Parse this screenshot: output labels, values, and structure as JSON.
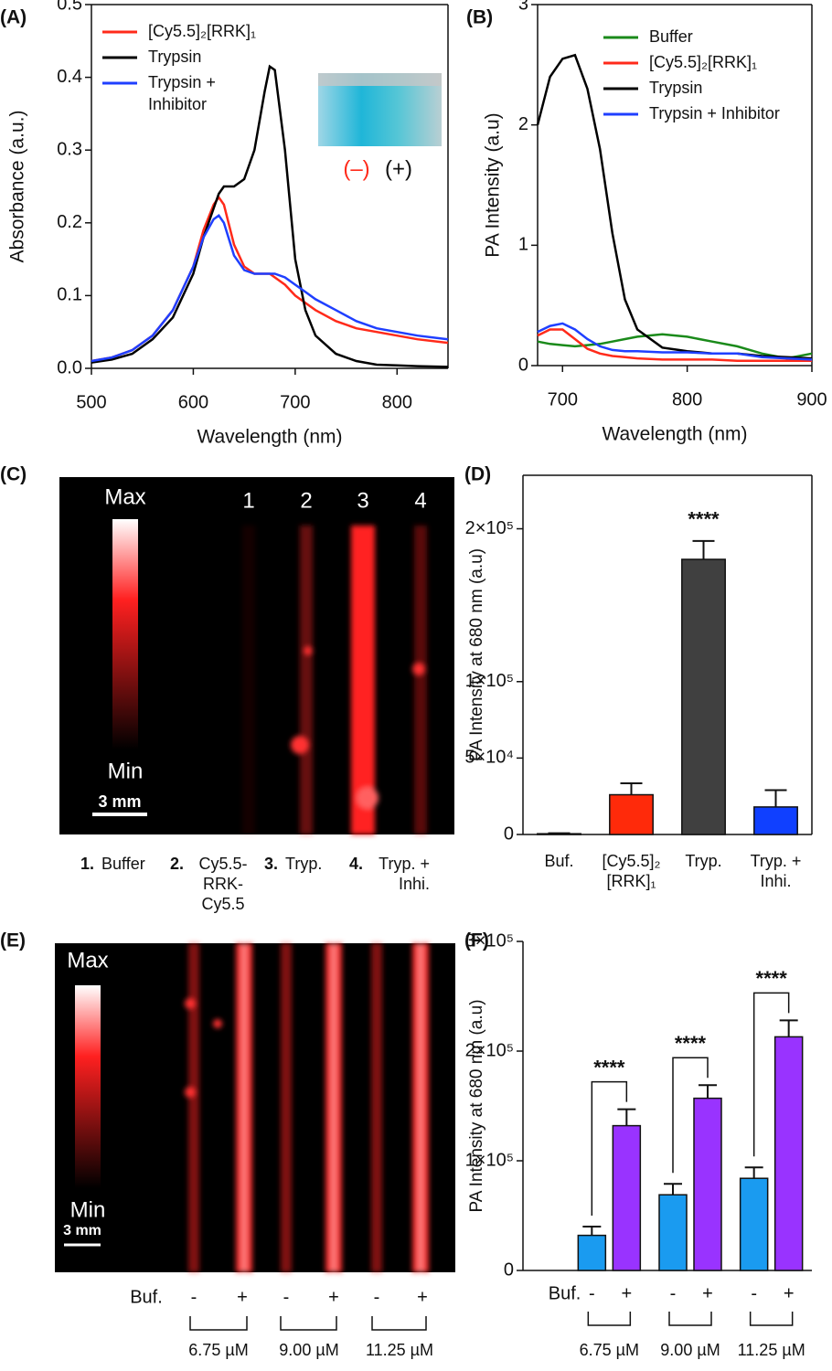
{
  "chart_data": [
    {
      "type": "line",
      "panel_label": "(A)",
      "xlabel": "Wavelength (nm)",
      "ylabel": "Absorbance (a.u.)",
      "x": [
        500,
        520,
        540,
        560,
        580,
        600,
        610,
        620,
        625,
        630,
        640,
        650,
        660,
        670,
        675,
        680,
        690,
        700,
        710,
        720,
        740,
        760,
        780,
        800,
        820,
        850
      ],
      "series": [
        {
          "name": "[Cy5.5]₂[RRK]₁",
          "color": "#ff2a1a",
          "values": [
            0.01,
            0.015,
            0.025,
            0.045,
            0.08,
            0.14,
            0.19,
            0.225,
            0.235,
            0.225,
            0.17,
            0.14,
            0.13,
            0.13,
            0.13,
            0.125,
            0.115,
            0.1,
            0.09,
            0.08,
            0.065,
            0.055,
            0.05,
            0.045,
            0.04,
            0.035
          ]
        },
        {
          "name": "Trypsin",
          "color": "#000000",
          "values": [
            0.008,
            0.012,
            0.02,
            0.04,
            0.07,
            0.13,
            0.18,
            0.22,
            0.24,
            0.25,
            0.25,
            0.26,
            0.3,
            0.38,
            0.415,
            0.41,
            0.3,
            0.15,
            0.08,
            0.045,
            0.02,
            0.01,
            0.005,
            0.004,
            0.003,
            0.002
          ]
        },
        {
          "name": "Trypsin +\nInhibitor",
          "color": "#1f3fff",
          "values": [
            0.01,
            0.015,
            0.025,
            0.045,
            0.08,
            0.14,
            0.18,
            0.205,
            0.21,
            0.2,
            0.155,
            0.135,
            0.13,
            0.13,
            0.13,
            0.13,
            0.125,
            0.115,
            0.105,
            0.095,
            0.08,
            0.065,
            0.055,
            0.05,
            0.045,
            0.04
          ]
        }
      ],
      "xlim": [
        500,
        850
      ],
      "xticks": [
        500,
        600,
        700,
        800
      ],
      "ylim": [
        0,
        0.5
      ],
      "yticks": [
        {
          "value": 0,
          "label": "0.0"
        },
        0.1,
        0.2,
        0.3,
        0.4,
        0.5
      ],
      "legend": "upper left",
      "box": true,
      "inset_labels": [
        "(–)",
        "(+)"
      ]
    },
    {
      "type": "line",
      "panel_label": "(B)",
      "xlabel": "Wavelength (nm)",
      "ylabel": "PA Intensity (a.u)",
      "x": [
        680,
        690,
        700,
        710,
        720,
        730,
        740,
        750,
        760,
        780,
        800,
        820,
        840,
        860,
        880,
        900
      ],
      "series": [
        {
          "name": "Buffer",
          "color": "#1a8a1a",
          "values": [
            0.2,
            0.18,
            0.17,
            0.16,
            0.17,
            0.18,
            0.2,
            0.22,
            0.24,
            0.26,
            0.24,
            0.2,
            0.16,
            0.1,
            0.06,
            0.1
          ]
        },
        {
          "name": "[Cy5.5]₂[RRK]₁",
          "color": "#ff2a1a",
          "values": [
            0.25,
            0.3,
            0.3,
            0.22,
            0.14,
            0.1,
            0.08,
            0.07,
            0.06,
            0.05,
            0.05,
            0.05,
            0.04,
            0.04,
            0.04,
            0.04
          ]
        },
        {
          "name": "Trypsin",
          "color": "#000000",
          "values": [
            2.0,
            2.4,
            2.55,
            2.58,
            2.3,
            1.8,
            1.1,
            0.55,
            0.3,
            0.15,
            0.12,
            0.1,
            0.1,
            0.08,
            0.07,
            0.06
          ]
        },
        {
          "name": "Trypsin + Inhibitor",
          "color": "#1f3fff",
          "values": [
            0.28,
            0.33,
            0.35,
            0.3,
            0.22,
            0.16,
            0.13,
            0.12,
            0.12,
            0.11,
            0.11,
            0.1,
            0.1,
            0.07,
            0.06,
            0.05
          ]
        }
      ],
      "xlim": [
        680,
        900
      ],
      "xticks": [
        700,
        800,
        900
      ],
      "ylim": [
        0,
        3
      ],
      "yticks": [
        0,
        1,
        2,
        3
      ],
      "legend": "upper right",
      "box": true
    },
    {
      "type": "bar",
      "panel_label": "(D)",
      "ylabel": "PA Intensity at 680 nm (a.u)",
      "categories": [
        "Buf.",
        "[Cy5.5]₂\n[RRK]₁",
        "Tryp.",
        "Tryp. +\nInhi."
      ],
      "values": [
        500,
        26000,
        180000,
        18000
      ],
      "errors": [
        300,
        7500,
        12000,
        11000
      ],
      "colors": [
        "#ffffff",
        "#ff2a0a",
        "#404040",
        "#1040ff"
      ],
      "ylim": [
        0,
        235000
      ],
      "yticks": [
        0,
        {
          "value": 50000,
          "label": "5×10⁴"
        },
        {
          "value": 100000,
          "label": "1×10⁵"
        },
        {
          "value": 200000,
          "label": "2×10⁵"
        }
      ],
      "annotation": "****",
      "box": true
    },
    {
      "type": "grouped_bar",
      "panel_label": "(F)",
      "ylabel": "PA Intensity at 680 nm (a.u)",
      "row_label": "Buf.",
      "categories": [
        "6.75 µM",
        "9.00 µM",
        "11.25 µM"
      ],
      "series": [
        {
          "name": "-",
          "color": "#1a9bf0",
          "values": [
            32000,
            69000,
            84000
          ],
          "errors": [
            8000,
            10000,
            10000
          ]
        },
        {
          "name": "+",
          "color": "#9933ff",
          "values": [
            132000,
            157000,
            213000
          ],
          "errors": [
            15000,
            12000,
            15000
          ]
        }
      ],
      "ylim": [
        0,
        300000
      ],
      "yticks": [
        0,
        {
          "value": 100000,
          "label": "1×10⁵"
        },
        {
          "value": 200000,
          "label": "2×10⁵"
        },
        {
          "value": 300000,
          "label": "3×10⁵"
        }
      ],
      "annotations": [
        "****",
        "****",
        "****"
      ],
      "box": false
    }
  ],
  "images": [
    {
      "panel_label": "(C)",
      "colorbar_max": "Max",
      "colorbar_min": "Min",
      "scale_bar": "3 mm",
      "lanes": [
        "1",
        "2",
        "3",
        "4"
      ],
      "captions": [
        {
          "number": "1.",
          "label": "Buffer"
        },
        {
          "number": "2.",
          "label": "Cy5.5-\nRRK-\nCy5.5"
        },
        {
          "number": "3.",
          "label": "Tryp."
        },
        {
          "number": "4.",
          "label": "Tryp. +\nInhi."
        }
      ]
    },
    {
      "panel_label": "(E)",
      "colorbar_max": "Max",
      "colorbar_min": "Min",
      "scale_bar": "3 mm",
      "row_label": "Buf.",
      "lanes": [
        "-",
        "+",
        "-",
        "+",
        "-",
        "+"
      ],
      "groups": [
        "6.75 µM",
        "9.00 µM",
        "11.25 µM"
      ]
    }
  ]
}
